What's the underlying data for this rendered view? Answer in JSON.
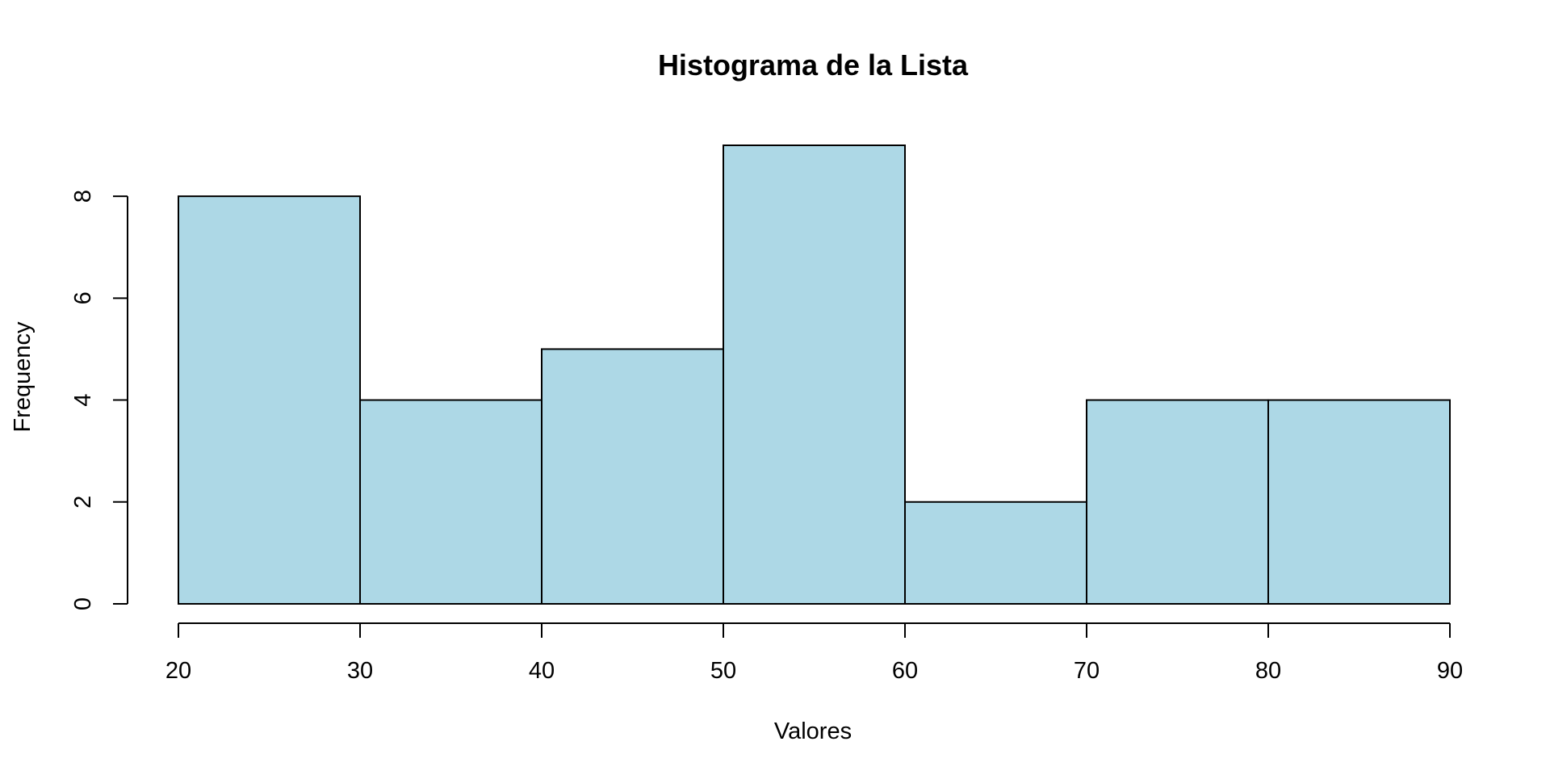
{
  "chart_data": {
    "type": "bar",
    "title": "Histograma de la Lista",
    "xlabel": "Valores",
    "ylabel": "Frequency",
    "bins": [
      {
        "start": 20,
        "end": 30,
        "count": 8
      },
      {
        "start": 30,
        "end": 40,
        "count": 4
      },
      {
        "start": 40,
        "end": 50,
        "count": 5
      },
      {
        "start": 50,
        "end": 60,
        "count": 9
      },
      {
        "start": 60,
        "end": 70,
        "count": 2
      },
      {
        "start": 70,
        "end": 80,
        "count": 4
      },
      {
        "start": 80,
        "end": 90,
        "count": 4
      }
    ],
    "x_ticks": [
      20,
      30,
      40,
      50,
      60,
      70,
      80,
      90
    ],
    "y_ticks": [
      0,
      2,
      4,
      6,
      8
    ],
    "xlim": [
      20,
      90
    ],
    "ylim": [
      0,
      9
    ],
    "bar_color": "#ADD8E6",
    "grid": false,
    "legend": "none"
  }
}
